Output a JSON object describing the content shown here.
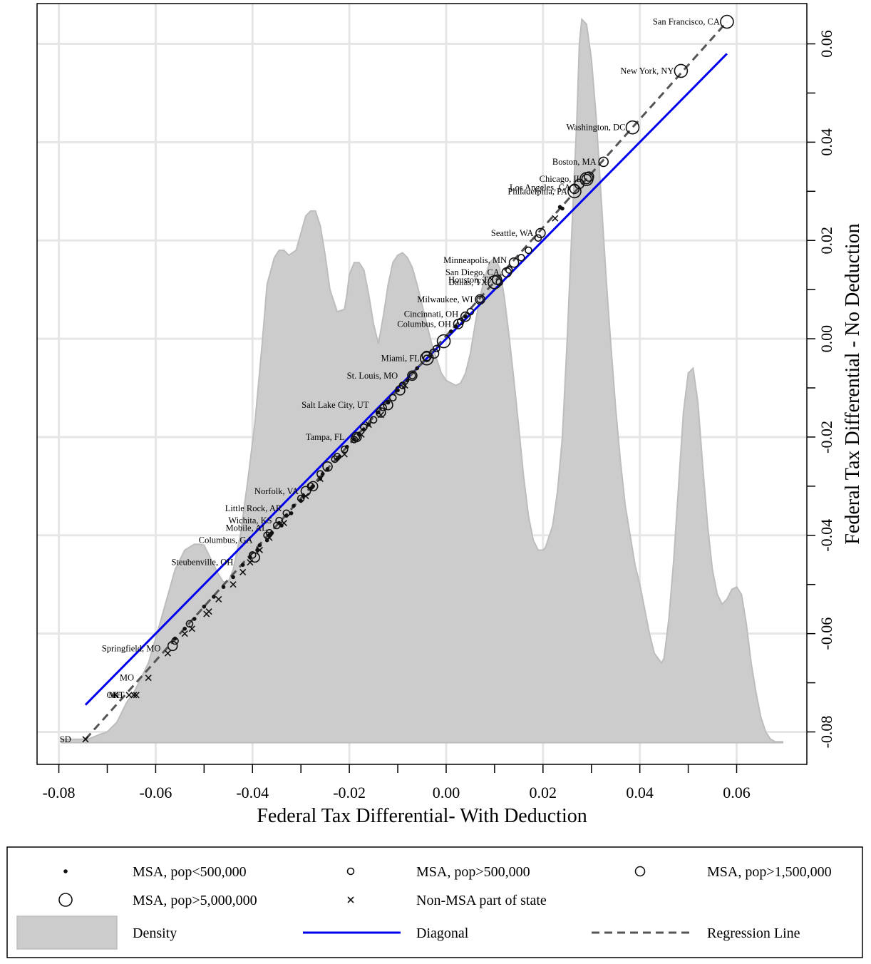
{
  "chart_data": {
    "type": "scatter",
    "xlabel": "Federal Tax Differential- With Deduction",
    "ylabel": "Federal Tax Differential - No Deduction",
    "xlim": [
      -0.0845,
      0.0745
    ],
    "ylim": [
      -0.0866,
      0.0682
    ],
    "x_ticks": [
      "-0.08",
      "-0.06",
      "-0.04",
      "-0.02",
      "0.00",
      "0.02",
      "0.04",
      "0.06"
    ],
    "y_ticks": [
      "-0.08",
      "-0.06",
      "-0.04",
      "-0.02",
      "0.00",
      "0.02",
      "0.04",
      "0.06"
    ],
    "grid": true,
    "colors": {
      "density": "#cccccc",
      "density_edge": "#bdbdbd",
      "diagonal": "#0000ee",
      "regression": "#555555",
      "grid": "#e6e6e6",
      "points": "#111111"
    },
    "density": {
      "x": [
        -0.0795,
        -0.074,
        -0.0715,
        -0.07,
        -0.068,
        -0.066,
        -0.0645,
        -0.063,
        -0.0615,
        -0.06,
        -0.058,
        -0.056,
        -0.054,
        -0.052,
        -0.051,
        -0.05,
        -0.049,
        -0.048,
        -0.047,
        -0.046,
        -0.045,
        -0.044,
        -0.0425,
        -0.041,
        -0.0395,
        -0.038,
        -0.037,
        -0.0355,
        -0.0345,
        -0.0335,
        -0.0325,
        -0.031,
        -0.03,
        -0.029,
        -0.028,
        -0.027,
        -0.026,
        -0.0255,
        -0.025,
        -0.024,
        -0.0225,
        -0.021,
        -0.0205,
        -0.02,
        -0.019,
        -0.018,
        -0.017,
        -0.016,
        -0.015,
        -0.014,
        -0.013,
        -0.012,
        -0.011,
        -0.01,
        -0.009,
        -0.008,
        -0.007,
        -0.006,
        -0.005,
        -0.004,
        -0.003,
        -0.002,
        -0.001,
        0.0,
        0.001,
        0.002,
        0.003,
        0.004,
        0.005,
        0.006,
        0.007,
        0.008,
        0.009,
        0.01,
        0.011,
        0.012,
        0.013,
        0.014,
        0.015,
        0.016,
        0.017,
        0.018,
        0.019,
        0.02,
        0.0205,
        0.021,
        0.022,
        0.023,
        0.024,
        0.025,
        0.026,
        0.027,
        0.0275,
        0.028,
        0.029,
        0.03,
        0.031,
        0.032,
        0.033,
        0.034,
        0.035,
        0.036,
        0.037,
        0.038,
        0.039,
        0.04,
        0.041,
        0.042,
        0.043,
        0.0445,
        0.045,
        0.046,
        0.047,
        0.048,
        0.049,
        0.05,
        0.051,
        0.052,
        0.053,
        0.054,
        0.055,
        0.056,
        0.057,
        0.058,
        0.059,
        0.06,
        0.061,
        0.062,
        0.063,
        0.064,
        0.065,
        0.066,
        0.067,
        0.068,
        0.0695
      ],
      "y": [
        -0.0815,
        -0.0815,
        -0.0805,
        -0.08,
        -0.078,
        -0.074,
        -0.072,
        -0.069,
        -0.066,
        -0.061,
        -0.054,
        -0.047,
        -0.043,
        -0.0418,
        -0.0418,
        -0.042,
        -0.044,
        -0.046,
        -0.048,
        -0.0495,
        -0.0495,
        -0.047,
        -0.04,
        -0.029,
        -0.017,
        -0.001,
        0.011,
        0.0165,
        0.018,
        0.018,
        0.017,
        0.018,
        0.0215,
        0.025,
        0.026,
        0.026,
        0.023,
        0.02,
        0.017,
        0.01,
        0.0055,
        0.006,
        0.009,
        0.013,
        0.0155,
        0.0155,
        0.014,
        0.009,
        0.003,
        -0.001,
        0.0045,
        0.011,
        0.0155,
        0.017,
        0.0175,
        0.0165,
        0.0145,
        0.011,
        0.007,
        0.003,
        -0.001,
        -0.004,
        -0.007,
        -0.0085,
        -0.009,
        -0.0095,
        -0.009,
        -0.007,
        -0.003,
        0.003,
        0.0085,
        0.0125,
        0.0155,
        0.0165,
        0.0145,
        0.0085,
        0.0005,
        -0.0085,
        -0.018,
        -0.028,
        -0.036,
        -0.041,
        -0.043,
        -0.043,
        -0.0425,
        -0.041,
        -0.038,
        -0.031,
        -0.02,
        0.0,
        0.023,
        0.045,
        0.06,
        0.065,
        0.064,
        0.057,
        0.045,
        0.029,
        0.013,
        -0.001,
        -0.014,
        -0.025,
        -0.034,
        -0.04,
        -0.046,
        -0.05,
        -0.055,
        -0.06,
        -0.064,
        -0.066,
        -0.065,
        -0.057,
        -0.045,
        -0.03,
        -0.015,
        -0.007,
        -0.006,
        -0.013,
        -0.026,
        -0.038,
        -0.047,
        -0.052,
        -0.054,
        -0.053,
        -0.051,
        -0.0505,
        -0.052,
        -0.058,
        -0.066,
        -0.072,
        -0.077,
        -0.08,
        -0.0815,
        -0.082,
        -0.082
      ]
    },
    "diagonal": {
      "x": [
        -0.0745,
        0.058
      ],
      "y": [
        -0.0745,
        0.058
      ]
    },
    "regression": {
      "x": [
        -0.0745,
        0.058
      ],
      "y": [
        -0.0815,
        0.0645
      ]
    },
    "series": [
      {
        "name": "MSA, pop<500,000",
        "marker": "dot",
        "r": 2.8,
        "x": [
          -0.0405,
          -0.039,
          -0.037,
          -0.036,
          -0.034,
          -0.032,
          -0.03,
          -0.028,
          -0.026,
          -0.0245,
          -0.022,
          -0.0205,
          -0.018,
          -0.016,
          -0.014,
          -0.012,
          -0.01,
          -0.008,
          -0.006,
          -0.046,
          -0.044,
          -0.042,
          -0.048,
          -0.05,
          -0.052,
          -0.054,
          -0.056,
          0.001,
          0.002,
          0.004,
          0.024,
          0.0235,
          -0.017,
          -0.019,
          -0.033,
          -0.0315,
          -0.0295,
          -0.0275,
          -0.0255,
          -0.0225,
          -0.0345,
          -0.0365,
          -0.0385
        ],
        "y": [
          -0.0445,
          -0.043,
          -0.041,
          -0.0395,
          -0.038,
          -0.0355,
          -0.033,
          -0.0305,
          -0.0285,
          -0.0265,
          -0.024,
          -0.022,
          -0.0195,
          -0.0175,
          -0.015,
          -0.013,
          -0.0105,
          -0.0085,
          -0.006,
          -0.0505,
          -0.0485,
          -0.046,
          -0.0525,
          -0.0545,
          -0.057,
          -0.059,
          -0.061,
          0.0015,
          0.0025,
          0.0045,
          0.0265,
          0.0268,
          -0.0185,
          -0.0205,
          -0.036,
          -0.034,
          -0.032,
          -0.03,
          -0.0275,
          -0.0245,
          -0.0375,
          -0.04,
          -0.042
        ]
      },
      {
        "name": "MSA, pop>500,000",
        "marker": "circle",
        "r": 4.5,
        "x": [
          -0.056,
          -0.053,
          -0.04,
          -0.037,
          -0.035,
          -0.033,
          -0.03,
          -0.028,
          -0.026,
          -0.023,
          -0.021,
          -0.019,
          -0.017,
          -0.015,
          -0.013,
          -0.011,
          -0.009,
          -0.007,
          -0.004,
          -0.002,
          0.003,
          0.005,
          0.007,
          0.011,
          0.013,
          0.017,
          0.019,
          0.0155,
          -0.0365,
          -0.0225,
          -0.0185,
          -0.0345
        ],
        "y": [
          -0.0615,
          -0.058,
          -0.044,
          -0.04,
          -0.038,
          -0.0355,
          -0.0325,
          -0.03,
          -0.0275,
          -0.0245,
          -0.0225,
          -0.0205,
          -0.018,
          -0.0165,
          -0.014,
          -0.012,
          -0.0095,
          -0.0075,
          -0.004,
          -0.002,
          0.0035,
          0.0055,
          0.008,
          0.0115,
          0.014,
          0.018,
          0.0205,
          0.0165,
          -0.0395,
          -0.024,
          -0.02,
          -0.037
        ]
      },
      {
        "name": "MSA, pop>1,500,000",
        "marker": "circle",
        "r": 6.5,
        "x": [
          -0.0565,
          -0.0395,
          -0.029,
          -0.0245,
          -0.0185,
          -0.012,
          -0.007,
          -0.0025,
          0.0025,
          0.004,
          0.007,
          0.0105,
          0.0125,
          0.014,
          0.0195,
          0.0265,
          0.0275,
          0.029,
          0.0295,
          0.0325,
          -0.0135,
          -0.0275,
          -0.0095,
          -0.004
        ],
        "y": [
          -0.0625,
          -0.0445,
          -0.031,
          -0.026,
          -0.02,
          -0.0135,
          -0.0075,
          -0.003,
          0.003,
          0.0045,
          0.008,
          0.012,
          0.0135,
          0.0155,
          0.0215,
          0.0305,
          0.0315,
          0.0325,
          0.033,
          0.036,
          -0.015,
          -0.03,
          -0.0105,
          -0.0035
        ]
      },
      {
        "name": "MSA, pop>5,000,000",
        "marker": "circle",
        "r": 9,
        "x": [
          0.058,
          0.0485,
          0.0385,
          0.0265,
          0.029,
          0.01,
          -0.004,
          -0.0005
        ],
        "y": [
          0.0645,
          0.0545,
          0.043,
          0.03,
          0.0325,
          0.0115,
          -0.004,
          -0.0005
        ]
      },
      {
        "name": "Non-MSA part of state",
        "marker": "x",
        "r": 4,
        "x": [
          -0.0745,
          -0.0645,
          -0.0655,
          -0.064,
          -0.0615,
          -0.0575,
          -0.054,
          -0.049,
          -0.047,
          -0.044,
          -0.042,
          -0.0405,
          -0.0385,
          -0.0365,
          -0.0335,
          -0.029,
          -0.026,
          -0.021,
          -0.016,
          -0.0135,
          -0.0085,
          0.0225,
          -0.0175,
          -0.0525,
          -0.0495
        ],
        "y": [
          -0.0815,
          -0.0725,
          -0.0725,
          -0.0725,
          -0.069,
          -0.064,
          -0.06,
          -0.0555,
          -0.053,
          -0.05,
          -0.0475,
          -0.0455,
          -0.043,
          -0.0405,
          -0.0375,
          -0.032,
          -0.0285,
          -0.0235,
          -0.0175,
          -0.0155,
          -0.0095,
          0.0245,
          -0.0195,
          -0.059,
          -0.056
        ]
      }
    ],
    "point_labels": [
      {
        "text": "San Francisco, CA",
        "x": 0.058,
        "y": 0.0645,
        "anchor": "end"
      },
      {
        "text": "New York, NY",
        "x": 0.0485,
        "y": 0.0545,
        "anchor": "end"
      },
      {
        "text": "Washington, DC",
        "x": 0.0385,
        "y": 0.043,
        "anchor": "end"
      },
      {
        "text": "Boston, MA",
        "x": 0.0325,
        "y": 0.036,
        "anchor": "end"
      },
      {
        "text": "Chicago, IL",
        "x": 0.0295,
        "y": 0.0325,
        "anchor": "end"
      },
      {
        "text": "Los Angeles, CA",
        "x": 0.0272,
        "y": 0.0308,
        "anchor": "end"
      },
      {
        "text": "Philadelphia, PA",
        "x": 0.0265,
        "y": 0.03,
        "anchor": "end"
      },
      {
        "text": "Seattle, WA",
        "x": 0.0195,
        "y": 0.0215,
        "anchor": "end"
      },
      {
        "text": "Minneapolis, MN",
        "x": 0.014,
        "y": 0.016,
        "anchor": "end"
      },
      {
        "text": "San Diego, CA",
        "x": 0.0125,
        "y": 0.0135,
        "anchor": "end"
      },
      {
        "text": "Houston, TX",
        "x": 0.0115,
        "y": 0.012,
        "anchor": "end"
      },
      {
        "text": "Dallas, TX",
        "x": 0.01,
        "y": 0.0115,
        "anchor": "end"
      },
      {
        "text": "Milwaukee, WI",
        "x": 0.007,
        "y": 0.008,
        "anchor": "end"
      },
      {
        "text": "Cincinnati, OH",
        "x": 0.004,
        "y": 0.005,
        "anchor": "end"
      },
      {
        "text": "Columbus, OH",
        "x": 0.0025,
        "y": 0.003,
        "anchor": "end"
      },
      {
        "text": "Miami, FL",
        "x": -0.004,
        "y": -0.004,
        "anchor": "end"
      },
      {
        "text": "St. Louis, MO",
        "x": -0.0085,
        "y": -0.0075,
        "anchor": "end"
      },
      {
        "text": "Salt Lake City, UT",
        "x": -0.0145,
        "y": -0.0135,
        "anchor": "end"
      },
      {
        "text": "Tampa, FL",
        "x": -0.0195,
        "y": -0.02,
        "anchor": "end"
      },
      {
        "text": "Norfolk, VA",
        "x": -0.029,
        "y": -0.031,
        "anchor": "end"
      },
      {
        "text": "Little Rock, AR",
        "x": -0.0325,
        "y": -0.0345,
        "anchor": "end"
      },
      {
        "text": "Wichita, KS",
        "x": -0.0345,
        "y": -0.037,
        "anchor": "end"
      },
      {
        "text": "Mobile, AL",
        "x": -0.0355,
        "y": -0.0385,
        "anchor": "end"
      },
      {
        "text": "Columbus, GA",
        "x": -0.0385,
        "y": -0.041,
        "anchor": "end"
      },
      {
        "text": "Steubenville, OH",
        "x": -0.0425,
        "y": -0.0455,
        "anchor": "end"
      },
      {
        "text": "Springfield, MO",
        "x": -0.0575,
        "y": -0.063,
        "anchor": "end"
      },
      {
        "text": "MO",
        "x": -0.063,
        "y": -0.069,
        "anchor": "end"
      },
      {
        "text": "OK",
        "x": -0.066,
        "y": -0.0725,
        "anchor": "end"
      },
      {
        "text": "ME",
        "x": -0.0655,
        "y": -0.0725,
        "anchor": "end"
      },
      {
        "text": "KT",
        "x": -0.065,
        "y": -0.0725,
        "anchor": "end"
      },
      {
        "text": "SD",
        "x": -0.076,
        "y": -0.0815,
        "anchor": "end"
      }
    ],
    "legend": [
      {
        "label": "MSA, pop<500,000",
        "symbol": "dot"
      },
      {
        "label": "MSA, pop>500,000",
        "symbol": "circle-s"
      },
      {
        "label": "MSA, pop>1,500,000",
        "symbol": "circle-m"
      },
      {
        "label": "MSA, pop>5,000,000",
        "symbol": "circle-l"
      },
      {
        "label": "Non-MSA part of state",
        "symbol": "x"
      },
      {
        "label": "Density",
        "symbol": "area"
      },
      {
        "label": "Diagonal",
        "symbol": "solid-line"
      },
      {
        "label": "Regression Line",
        "symbol": "dashed-line"
      }
    ]
  }
}
